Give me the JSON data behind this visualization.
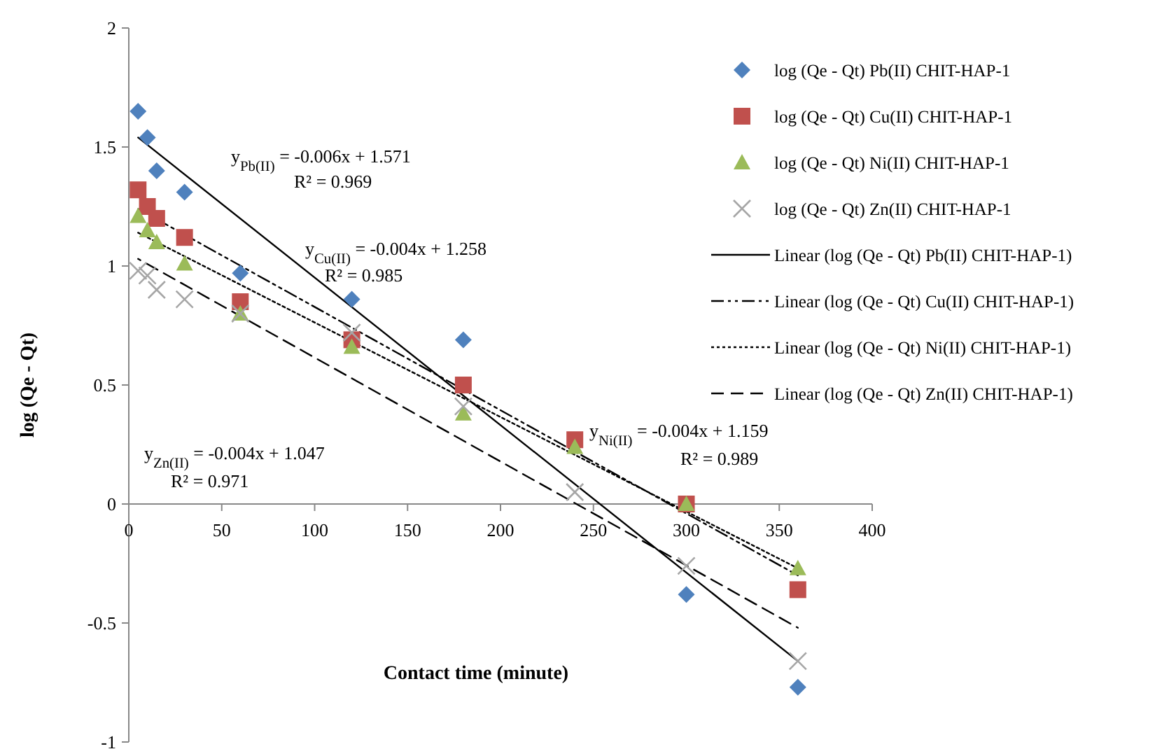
{
  "chart_data": {
    "type": "scatter",
    "xlabel": "Contact time (minute)",
    "ylabel": "log (Qe - Qt)",
    "xlim": [
      0,
      400
    ],
    "xticks": [
      0,
      50,
      100,
      150,
      200,
      250,
      300,
      350,
      400
    ],
    "ylim": [
      -1,
      2
    ],
    "yticks": [
      -1,
      -0.5,
      0,
      0.5,
      1,
      1.5,
      2
    ],
    "grid": false,
    "legend": "right",
    "series": [
      {
        "name": "log (Qe - Qt) Pb(II) CHIT-HAP-1",
        "marker": "diamond",
        "color": "#4f81bd",
        "x": [
          5,
          10,
          15,
          30,
          60,
          120,
          180,
          300,
          360
        ],
        "values": [
          1.65,
          1.54,
          1.4,
          1.31,
          0.97,
          0.86,
          0.69,
          -0.38,
          -0.77
        ]
      },
      {
        "name": "log (Qe - Qt) Cu(II) CHIT-HAP-1",
        "marker": "square",
        "color": "#c0504d",
        "x": [
          5,
          10,
          15,
          30,
          60,
          120,
          180,
          240,
          300,
          360
        ],
        "values": [
          1.32,
          1.25,
          1.2,
          1.12,
          0.85,
          0.69,
          0.5,
          0.27,
          0.0,
          -0.36
        ]
      },
      {
        "name": "log (Qe - Qt) Ni(II) CHIT-HAP-1",
        "marker": "triangle",
        "color": "#9bbb59",
        "x": [
          5,
          10,
          15,
          30,
          60,
          120,
          180,
          240,
          300,
          360
        ],
        "values": [
          1.21,
          1.15,
          1.1,
          1.01,
          0.8,
          0.66,
          0.38,
          0.24,
          0.0,
          -0.27
        ]
      },
      {
        "name": "log (Qe - Qt) Zn(II) CHIT-HAP-1",
        "marker": "cross",
        "color": "#a6a6a6",
        "x": [
          5,
          10,
          15,
          30,
          60,
          120,
          180,
          240,
          300,
          360
        ],
        "values": [
          0.98,
          0.96,
          0.9,
          0.86,
          0.8,
          0.72,
          0.41,
          0.05,
          -0.26,
          -0.66
        ]
      },
      {
        "name": "Linear (log (Qe - Qt) Pb(II) CHIT-HAP-1)",
        "type": "line",
        "line_style": "solid",
        "color": "#000000",
        "x": [
          5,
          360
        ],
        "values": [
          1.54,
          -0.66
        ]
      },
      {
        "name": "Linear (log (Qe - Qt) Cu(II) CHIT-HAP-1)",
        "type": "line",
        "line_style": "dashdot",
        "color": "#000000",
        "x": [
          5,
          360
        ],
        "values": [
          1.24,
          -0.3
        ]
      },
      {
        "name": "Linear (log (Qe - Qt) Ni(II) CHIT-HAP-1)",
        "type": "line",
        "line_style": "dotted",
        "color": "#000000",
        "x": [
          5,
          360
        ],
        "values": [
          1.14,
          -0.27
        ]
      },
      {
        "name": "Linear (log (Qe - Qt) Zn(II) CHIT-HAP-1)",
        "type": "line",
        "line_style": "dashed",
        "color": "#000000",
        "x": [
          5,
          360
        ],
        "values": [
          1.03,
          -0.52
        ]
      }
    ],
    "annotations": [
      "y$_{Pb(II)}$ = -0.006x + 1.571",
      "R² = 0.969",
      "y$_{Cu(II)}$ = -0.004x + 1.258",
      "R² = 0.985",
      "y$_{Zn(II)}$ = -0.004x + 1.047",
      "R² = 0.971",
      "y$_{Ni(II)}$ = -0.004x + 1.159",
      "R² = 0.989"
    ]
  }
}
